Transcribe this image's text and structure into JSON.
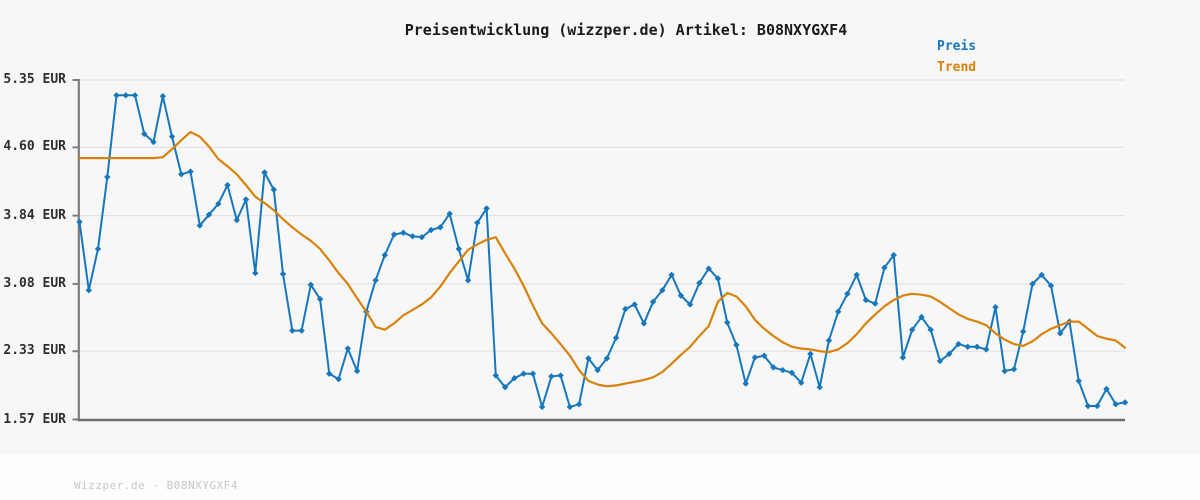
{
  "title": "Preisentwicklung (wizzper.de) Artikel: B08NXYGXF4",
  "watermark": "Wizzper.de - B08NXYGXF4",
  "colors": {
    "preis": "#1777bd",
    "trend": "#d9820a",
    "axis": "#7d7d7d",
    "grid": "#e3e3e3",
    "title_text": "#1a1a1a",
    "tick_text": "#2e2e2e",
    "watermark_text": "#c6c6c6"
  },
  "chart_data": {
    "type": "line",
    "title": "Preisentwicklung (wizzper.de) Artikel: B08NXYGXF4",
    "xlabel": "",
    "ylabel": "",
    "x_tick_labels": [],
    "x_points": 114,
    "ylim": [
      1.57,
      5.35
    ],
    "grid": "horizontal",
    "legend_position": "top-right",
    "currency": "EUR",
    "y_ticks": [
      {
        "label": "5.35 EUR",
        "value": 5.35
      },
      {
        "label": "4.60 EUR",
        "value": 4.6
      },
      {
        "label": "3.84 EUR",
        "value": 3.84
      },
      {
        "label": "3.08 EUR",
        "value": 3.08
      },
      {
        "label": "2.33 EUR",
        "value": 2.33
      },
      {
        "label": "1.57 EUR",
        "value": 1.57
      }
    ],
    "series": [
      {
        "name": "Preis",
        "color": "#1777bd",
        "marker": "diamond",
        "width": 2,
        "values": [
          3.77,
          3.01,
          3.47,
          4.27,
          5.18,
          5.18,
          5.18,
          4.75,
          4.66,
          5.17,
          4.72,
          4.3,
          4.33,
          3.73,
          3.85,
          3.97,
          4.18,
          3.79,
          4.02,
          3.2,
          4.32,
          4.13,
          3.19,
          2.56,
          2.56,
          3.07,
          2.91,
          2.08,
          2.02,
          2.36,
          2.11,
          2.77,
          3.12,
          3.4,
          3.63,
          3.65,
          3.61,
          3.6,
          3.68,
          3.71,
          3.86,
          3.47,
          3.12,
          3.76,
          3.92,
          2.06,
          1.93,
          2.03,
          2.08,
          2.08,
          1.71,
          2.05,
          2.06,
          1.71,
          1.74,
          2.25,
          2.12,
          2.25,
          2.48,
          2.8,
          2.85,
          2.64,
          2.88,
          3.01,
          3.18,
          2.95,
          2.85,
          3.09,
          3.25,
          3.14,
          2.65,
          2.4,
          1.97,
          2.26,
          2.28,
          2.15,
          2.12,
          2.09,
          1.98,
          2.3,
          1.93,
          2.45,
          2.77,
          2.97,
          3.18,
          2.9,
          2.86,
          3.26,
          3.4,
          2.26,
          2.57,
          2.71,
          2.57,
          2.22,
          2.3,
          2.41,
          2.38,
          2.38,
          2.35,
          2.82,
          2.11,
          2.13,
          2.55,
          3.08,
          3.18,
          3.06,
          2.53,
          2.66,
          2.0,
          1.72,
          1.72,
          1.91,
          1.74,
          1.76
        ]
      },
      {
        "name": "Trend",
        "color": "#d9820a",
        "marker": "none",
        "width": 2.2,
        "values": [
          4.48,
          4.48,
          4.48,
          4.48,
          4.48,
          4.48,
          4.48,
          4.48,
          4.48,
          4.49,
          4.58,
          4.68,
          4.77,
          4.72,
          4.61,
          4.47,
          4.39,
          4.3,
          4.18,
          4.05,
          3.98,
          3.9,
          3.8,
          3.71,
          3.63,
          3.56,
          3.47,
          3.34,
          3.2,
          3.08,
          2.92,
          2.77,
          2.6,
          2.57,
          2.64,
          2.73,
          2.79,
          2.85,
          2.93,
          3.05,
          3.2,
          3.33,
          3.46,
          3.52,
          3.57,
          3.6,
          3.42,
          3.25,
          3.06,
          2.84,
          2.64,
          2.53,
          2.41,
          2.28,
          2.12,
          2.0,
          1.96,
          1.94,
          1.95,
          1.97,
          1.99,
          2.01,
          2.04,
          2.1,
          2.19,
          2.29,
          2.38,
          2.5,
          2.61,
          2.88,
          2.98,
          2.94,
          2.83,
          2.68,
          2.58,
          2.5,
          2.43,
          2.38,
          2.36,
          2.35,
          2.33,
          2.32,
          2.35,
          2.42,
          2.52,
          2.64,
          2.74,
          2.83,
          2.9,
          2.95,
          2.97,
          2.96,
          2.94,
          2.88,
          2.81,
          2.74,
          2.69,
          2.66,
          2.62,
          2.53,
          2.46,
          2.41,
          2.39,
          2.44,
          2.52,
          2.58,
          2.62,
          2.66,
          2.66,
          2.58,
          2.5,
          2.47,
          2.45,
          2.37
        ]
      }
    ]
  }
}
